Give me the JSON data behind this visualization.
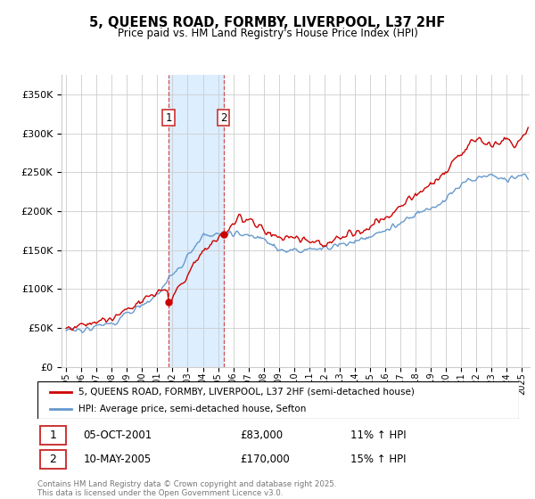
{
  "title": "5, QUEENS ROAD, FORMBY, LIVERPOOL, L37 2HF",
  "subtitle": "Price paid vs. HM Land Registry's House Price Index (HPI)",
  "ylabel_ticks": [
    "£0",
    "£50K",
    "£100K",
    "£150K",
    "£200K",
    "£250K",
    "£300K",
    "£350K"
  ],
  "ytick_values": [
    0,
    50000,
    100000,
    150000,
    200000,
    250000,
    300000,
    350000
  ],
  "ylim": [
    0,
    375000
  ],
  "xlim_start": 1994.7,
  "xlim_end": 2025.5,
  "transaction1": {
    "date_x": 2001.75,
    "price": 83000,
    "label": "1",
    "date_str": "05-OCT-2001",
    "price_str": "£83,000",
    "pct": "11% ↑ HPI"
  },
  "transaction2": {
    "date_x": 2005.35,
    "price": 170000,
    "label": "2",
    "date_str": "10-MAY-2005",
    "price_str": "£170,000",
    "pct": "15% ↑ HPI"
  },
  "legend_line1": "5, QUEENS ROAD, FORMBY, LIVERPOOL, L37 2HF (semi-detached house)",
  "legend_line2": "HPI: Average price, semi-detached house, Sefton",
  "footer": "Contains HM Land Registry data © Crown copyright and database right 2025.\nThis data is licensed under the Open Government Licence v3.0.",
  "red_color": "#cc0000",
  "blue_color": "#6699cc",
  "shade_color": "#ddeeff",
  "grid_color": "#cccccc",
  "box_color": "#cc3333",
  "title_fontsize": 10.5,
  "subtitle_fontsize": 8.5
}
